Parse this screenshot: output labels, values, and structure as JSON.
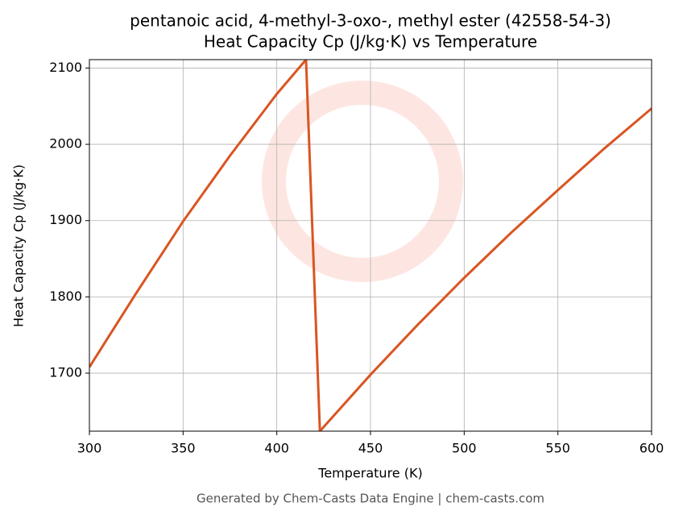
{
  "chart_data": {
    "type": "line",
    "title": "pentanoic acid, 4-methyl-3-oxo-, methyl ester (42558-54-3)",
    "subtitle": "Heat Capacity Cp (J/kg·K) vs Temperature",
    "x_label": "Temperature (K)",
    "y_label": "Heat Capacity Cp (J/kg·K)",
    "footer": "Generated by Chem-Casts Data Engine | chem-casts.com",
    "x": [
      300,
      325,
      350,
      375,
      400,
      415.6,
      423,
      450,
      475,
      500,
      525,
      550,
      575,
      600
    ],
    "series": [
      {
        "name": "Cp",
        "color": "#d95522",
        "values": [
          1708,
          1805,
          1899,
          1985,
          2066,
          2111,
          1624,
          1698,
          1763,
          1825,
          1884,
          1940,
          1995,
          2047
        ]
      }
    ],
    "xlim": [
      300,
      600
    ],
    "ylim": [
      1624,
      2111
    ],
    "xticks": [
      300,
      350,
      400,
      450,
      500,
      550,
      600
    ],
    "yticks": [
      1700,
      1800,
      1900,
      2000,
      2100
    ],
    "grid": true
  }
}
